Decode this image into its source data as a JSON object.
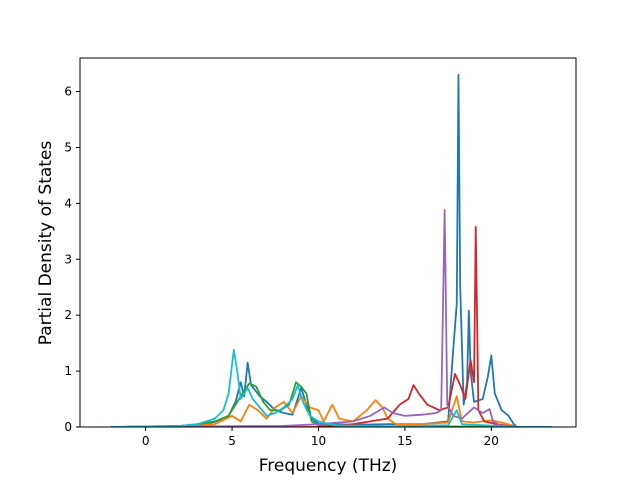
{
  "chart_data": {
    "type": "line",
    "title": "",
    "xlabel": "Frequency (THz)",
    "ylabel": "Partial Density of States",
    "xlim": [
      -3.8,
      24.9
    ],
    "ylim": [
      0,
      6.6
    ],
    "xticks": [
      0,
      5,
      10,
      15,
      20
    ],
    "yticks": [
      0,
      1,
      2,
      3,
      4,
      5,
      6
    ],
    "grid": false,
    "legend": "none",
    "series": [
      {
        "color": "#1f77b4",
        "points": [
          [
            -2,
            0
          ],
          [
            2,
            0.02
          ],
          [
            3,
            0.04
          ],
          [
            4,
            0.09
          ],
          [
            4.8,
            0.2
          ],
          [
            5.2,
            0.45
          ],
          [
            5.5,
            0.8
          ],
          [
            5.7,
            0.55
          ],
          [
            5.9,
            1.15
          ],
          [
            6.1,
            0.75
          ],
          [
            6.6,
            0.55
          ],
          [
            7.0,
            0.45
          ],
          [
            7.5,
            0.3
          ],
          [
            8.0,
            0.25
          ],
          [
            8.5,
            0.22
          ],
          [
            9.0,
            0.7
          ],
          [
            9.3,
            0.4
          ],
          [
            9.6,
            0.15
          ],
          [
            10,
            0.06
          ],
          [
            12,
            0.04
          ],
          [
            14,
            0.05
          ],
          [
            16,
            0.05
          ],
          [
            17.5,
            0.1
          ],
          [
            17.8,
            1.4
          ],
          [
            18.0,
            2.2
          ],
          [
            18.1,
            6.3
          ],
          [
            18.2,
            2.5
          ],
          [
            18.4,
            0.4
          ],
          [
            18.6,
            0.8
          ],
          [
            18.7,
            2.08
          ],
          [
            18.8,
            1.0
          ],
          [
            19.0,
            0.45
          ],
          [
            19.5,
            0.5
          ],
          [
            19.8,
            0.9
          ],
          [
            20.0,
            1.28
          ],
          [
            20.2,
            0.6
          ],
          [
            20.6,
            0.3
          ],
          [
            21.0,
            0.2
          ],
          [
            21.3,
            0.05
          ],
          [
            21.5,
            0
          ],
          [
            23.5,
            0
          ]
        ]
      },
      {
        "color": "#ff7f0e",
        "points": [
          [
            -2,
            0
          ],
          [
            2,
            0.01
          ],
          [
            4,
            0.05
          ],
          [
            5,
            0.2
          ],
          [
            5.5,
            0.1
          ],
          [
            6,
            0.4
          ],
          [
            6.5,
            0.3
          ],
          [
            7,
            0.15
          ],
          [
            7.5,
            0.35
          ],
          [
            8,
            0.45
          ],
          [
            8.5,
            0.25
          ],
          [
            9,
            0.55
          ],
          [
            9.5,
            0.35
          ],
          [
            10,
            0.3
          ],
          [
            10.3,
            0.1
          ],
          [
            10.8,
            0.4
          ],
          [
            11.2,
            0.15
          ],
          [
            12,
            0.1
          ],
          [
            12.8,
            0.3
          ],
          [
            13.3,
            0.48
          ],
          [
            13.7,
            0.35
          ],
          [
            14.0,
            0.15
          ],
          [
            14.5,
            0.05
          ],
          [
            16,
            0.05
          ],
          [
            17.5,
            0.08
          ],
          [
            18,
            0.55
          ],
          [
            18.3,
            0.1
          ],
          [
            19,
            0.08
          ],
          [
            20,
            0.12
          ],
          [
            21,
            0.05
          ],
          [
            21.5,
            0
          ],
          [
            23.5,
            0
          ]
        ]
      },
      {
        "color": "#2ca02c",
        "points": [
          [
            -2,
            0
          ],
          [
            2,
            0.02
          ],
          [
            3,
            0.05
          ],
          [
            4,
            0.1
          ],
          [
            4.8,
            0.2
          ],
          [
            5.2,
            0.4
          ],
          [
            5.6,
            0.6
          ],
          [
            6.0,
            0.78
          ],
          [
            6.4,
            0.72
          ],
          [
            6.8,
            0.45
          ],
          [
            7.2,
            0.3
          ],
          [
            7.8,
            0.3
          ],
          [
            8.3,
            0.4
          ],
          [
            8.7,
            0.8
          ],
          [
            9.0,
            0.72
          ],
          [
            9.3,
            0.6
          ],
          [
            9.6,
            0.1
          ],
          [
            10,
            0.03
          ],
          [
            12,
            0.01
          ],
          [
            17,
            0.01
          ],
          [
            21.5,
            0
          ],
          [
            23.5,
            0
          ]
        ]
      },
      {
        "color": "#d62728",
        "points": [
          [
            -2,
            0
          ],
          [
            10,
            0
          ],
          [
            12,
            0.05
          ],
          [
            13,
            0.1
          ],
          [
            14,
            0.15
          ],
          [
            14.7,
            0.4
          ],
          [
            15.2,
            0.5
          ],
          [
            15.5,
            0.75
          ],
          [
            15.8,
            0.6
          ],
          [
            16.3,
            0.4
          ],
          [
            17,
            0.3
          ],
          [
            17.5,
            0.35
          ],
          [
            17.9,
            0.95
          ],
          [
            18.2,
            0.75
          ],
          [
            18.5,
            0.5
          ],
          [
            18.8,
            1.2
          ],
          [
            19.0,
            0.8
          ],
          [
            19.1,
            3.58
          ],
          [
            19.25,
            0.3
          ],
          [
            19.6,
            0.1
          ],
          [
            20.3,
            0.05
          ],
          [
            21,
            0.02
          ],
          [
            21.5,
            0
          ],
          [
            23.5,
            0
          ]
        ]
      },
      {
        "color": "#9467bd",
        "points": [
          [
            -2,
            0
          ],
          [
            8,
            0.02
          ],
          [
            10,
            0.05
          ],
          [
            12,
            0.1
          ],
          [
            13,
            0.2
          ],
          [
            13.8,
            0.35
          ],
          [
            14.3,
            0.25
          ],
          [
            15,
            0.2
          ],
          [
            16,
            0.22
          ],
          [
            16.8,
            0.25
          ],
          [
            17.1,
            0.3
          ],
          [
            17.3,
            3.88
          ],
          [
            17.45,
            0.4
          ],
          [
            17.8,
            0.2
          ],
          [
            18.3,
            0.15
          ],
          [
            19,
            0.35
          ],
          [
            19.5,
            0.25
          ],
          [
            19.9,
            0.32
          ],
          [
            20.1,
            0.1
          ],
          [
            20.5,
            0.03
          ],
          [
            21.5,
            0
          ],
          [
            23.5,
            0
          ]
        ]
      },
      {
        "color": "#17becf",
        "points": [
          [
            -2,
            0
          ],
          [
            1,
            0.01
          ],
          [
            2,
            0.02
          ],
          [
            3,
            0.05
          ],
          [
            4,
            0.15
          ],
          [
            4.5,
            0.3
          ],
          [
            4.8,
            0.6
          ],
          [
            5.1,
            1.38
          ],
          [
            5.3,
            1.0
          ],
          [
            5.5,
            0.5
          ],
          [
            5.9,
            0.7
          ],
          [
            6.2,
            0.5
          ],
          [
            6.6,
            0.35
          ],
          [
            7.0,
            0.2
          ],
          [
            7.5,
            0.25
          ],
          [
            8.0,
            0.35
          ],
          [
            8.5,
            0.5
          ],
          [
            8.8,
            0.75
          ],
          [
            9.1,
            0.45
          ],
          [
            9.5,
            0.2
          ],
          [
            10,
            0.1
          ],
          [
            11,
            0.03
          ],
          [
            14,
            0.01
          ],
          [
            17.5,
            0.03
          ],
          [
            18.0,
            0.3
          ],
          [
            18.3,
            0.05
          ],
          [
            21.5,
            0
          ],
          [
            23.5,
            0
          ]
        ]
      }
    ]
  }
}
